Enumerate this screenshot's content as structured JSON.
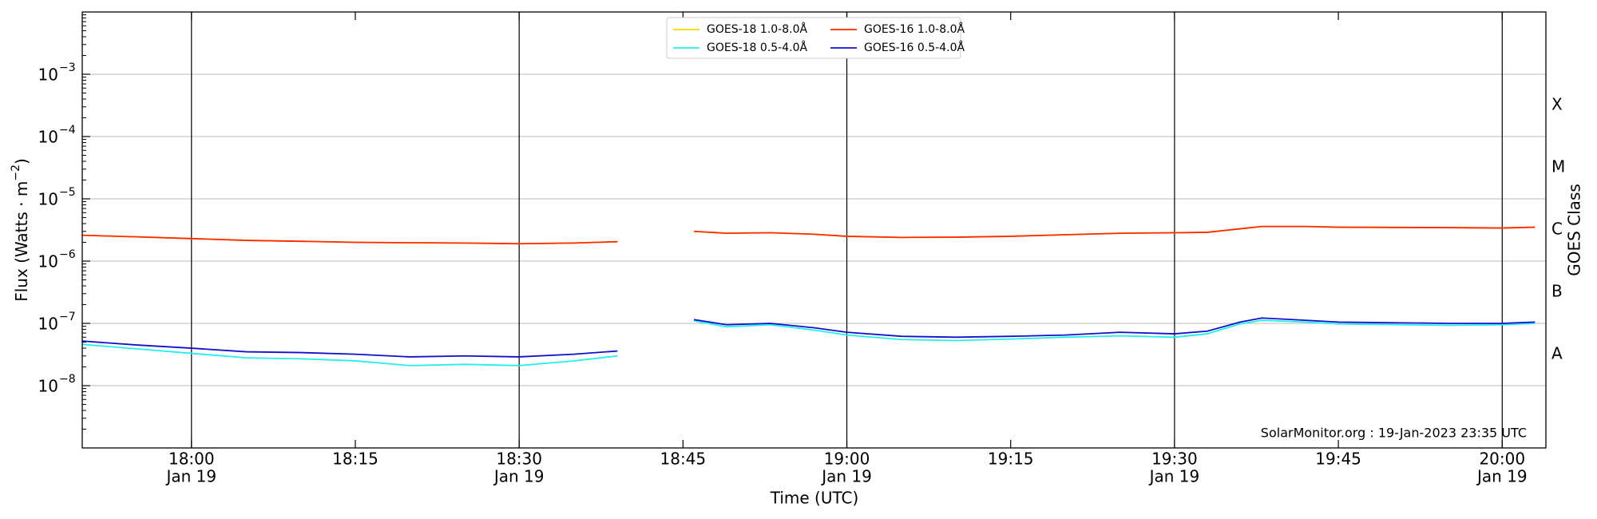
{
  "chart_data": {
    "type": "line",
    "x_label": "Time (UTC)",
    "y_label": "Flux (Watts · m",
    "y_label_exponent": "−2",
    "y_label_end": ")",
    "y2_label": "GOES Class",
    "annotation": "SolarMonitor.org : 19-Jan-2023 23:35 UTC",
    "log_y": true,
    "grid": true,
    "legend": "upper center",
    "x": [
      "17:50",
      "17:55",
      "18:00",
      "18:05",
      "18:10",
      "18:15",
      "18:20",
      "18:25",
      "18:30",
      "18:35",
      "18:39",
      "18:42",
      "18:46",
      "18:49",
      "18:53",
      "18:57",
      "19:00",
      "19:05",
      "19:10",
      "19:15",
      "19:20",
      "19:25",
      "19:30",
      "19:33",
      "19:36",
      "19:38",
      "19:42",
      "19:45",
      "19:55",
      "20:00",
      "20:03"
    ],
    "xlim": [
      "17:50",
      "20:04"
    ],
    "xticks": [
      {
        "value": "18:00",
        "label": "18:00",
        "date": "Jan 19"
      },
      {
        "value": "18:15",
        "label": "18:15"
      },
      {
        "value": "18:30",
        "label": "18:30",
        "date": "Jan 19"
      },
      {
        "value": "18:45",
        "label": "18:45"
      },
      {
        "value": "19:00",
        "label": "19:00",
        "date": "Jan 19"
      },
      {
        "value": "19:15",
        "label": "19:15"
      },
      {
        "value": "19:30",
        "label": "19:30",
        "date": "Jan 19"
      },
      {
        "value": "19:45",
        "label": "19:45"
      },
      {
        "value": "20:00",
        "label": "20:00",
        "date": "Jan 19"
      }
    ],
    "ylim": [
      1e-09,
      0.01
    ],
    "yticks": [
      {
        "value": 1e-08,
        "label": "10",
        "exponent": "−8"
      },
      {
        "value": 1e-07,
        "label": "10",
        "exponent": "−7"
      },
      {
        "value": 1e-06,
        "label": "10",
        "exponent": "−6"
      },
      {
        "value": 1e-05,
        "label": "10",
        "exponent": "−5"
      },
      {
        "value": 0.0001,
        "label": "10",
        "exponent": "−4"
      },
      {
        "value": 0.001,
        "label": "10",
        "exponent": "−3"
      }
    ],
    "y2lim": [
      1e-09,
      0.01
    ],
    "y2ticks": [
      {
        "value": 3.162e-08,
        "label": "A"
      },
      {
        "value": 3.162e-07,
        "label": "B"
      },
      {
        "value": 3.162e-06,
        "label": "C"
      },
      {
        "value": 3.162e-05,
        "label": "M"
      },
      {
        "value": 0.0003162,
        "label": "X"
      }
    ],
    "series": [
      {
        "name": "GOES-18 1.0-8.0Å",
        "color": "#ffd700",
        "values": [
          2.6e-06,
          2.45e-06,
          2.3e-06,
          2.15e-06,
          2.08e-06,
          2e-06,
          1.97e-06,
          1.95e-06,
          1.9e-06,
          1.95e-06,
          2.05e-06,
          null,
          3e-06,
          2.8e-06,
          2.85e-06,
          2.7e-06,
          2.5e-06,
          2.4e-06,
          2.42e-06,
          2.5e-06,
          2.65e-06,
          2.8e-06,
          2.85e-06,
          2.9e-06,
          3.3e-06,
          3.6e-06,
          3.6e-06,
          3.5e-06,
          3.45e-06,
          3.4e-06,
          3.5e-06
        ]
      },
      {
        "name": "GOES-18 0.5-4.0Å",
        "color": "#22eeee",
        "values": [
          4.6e-08,
          3.9e-08,
          3.3e-08,
          2.8e-08,
          2.7e-08,
          2.5e-08,
          2.1e-08,
          2.2e-08,
          2.1e-08,
          2.5e-08,
          3e-08,
          null,
          1.1e-07,
          8.8e-08,
          9.5e-08,
          7.8e-08,
          6.5e-08,
          5.5e-08,
          5.3e-08,
          5.6e-08,
          6e-08,
          6.3e-08,
          6e-08,
          6.8e-08,
          9.8e-08,
          1.12e-07,
          1.05e-07,
          9.8e-08,
          9.3e-08,
          9.5e-08,
          1e-07
        ]
      },
      {
        "name": "GOES-16 1.0-8.0Å",
        "color": "#ff2a00",
        "values": [
          2.6e-06,
          2.45e-06,
          2.3e-06,
          2.15e-06,
          2.08e-06,
          2e-06,
          1.97e-06,
          1.95e-06,
          1.9e-06,
          1.95e-06,
          2.05e-06,
          null,
          3e-06,
          2.8e-06,
          2.85e-06,
          2.7e-06,
          2.5e-06,
          2.4e-06,
          2.42e-06,
          2.5e-06,
          2.65e-06,
          2.8e-06,
          2.85e-06,
          2.9e-06,
          3.3e-06,
          3.6e-06,
          3.6e-06,
          3.5e-06,
          3.45e-06,
          3.4e-06,
          3.5e-06
        ]
      },
      {
        "name": "GOES-16 0.5-4.0Å",
        "color": "#1010cc",
        "values": [
          5.2e-08,
          4.5e-08,
          4e-08,
          3.5e-08,
          3.4e-08,
          3.2e-08,
          2.9e-08,
          3e-08,
          2.9e-08,
          3.2e-08,
          3.6e-08,
          null,
          1.15e-07,
          9.5e-08,
          1e-07,
          8.5e-08,
          7.2e-08,
          6.2e-08,
          6e-08,
          6.2e-08,
          6.5e-08,
          7.2e-08,
          6.8e-08,
          7.5e-08,
          1.05e-07,
          1.22e-07,
          1.12e-07,
          1.05e-07,
          1e-07,
          1e-07,
          1.05e-07
        ]
      }
    ]
  }
}
